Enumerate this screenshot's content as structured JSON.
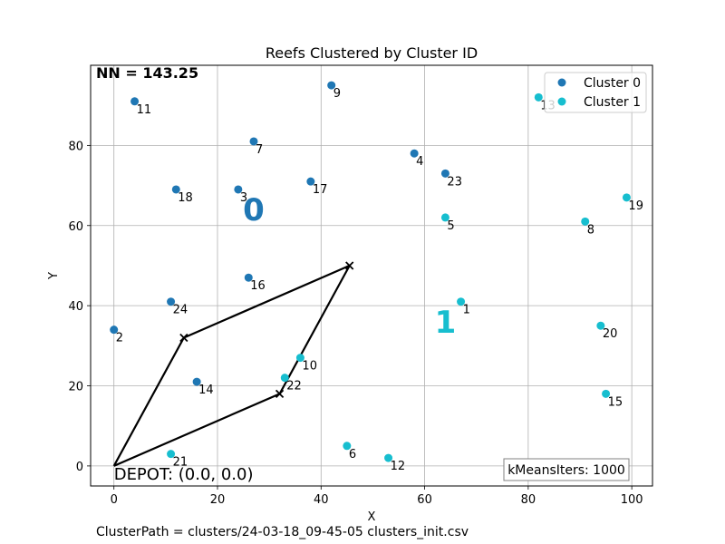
{
  "chart_data": {
    "type": "scatter",
    "title": "Reefs Clustered by Cluster ID",
    "xlabel": "X",
    "ylabel": "Y",
    "xlim": [
      -4.5,
      104
    ],
    "ylim": [
      -5,
      100
    ],
    "xticks": [
      0,
      20,
      40,
      60,
      80,
      100
    ],
    "yticks": [
      0,
      20,
      40,
      60,
      80
    ],
    "grid": true,
    "legend_position": "top-right",
    "series": [
      {
        "name": "Cluster 0",
        "color": "#1f77b4",
        "points": [
          {
            "id": "2",
            "x": 0,
            "y": 34
          },
          {
            "id": "3",
            "x": 24,
            "y": 69
          },
          {
            "id": "4",
            "x": 58,
            "y": 78
          },
          {
            "id": "7",
            "x": 27,
            "y": 81
          },
          {
            "id": "9",
            "x": 42,
            "y": 95
          },
          {
            "id": "11",
            "x": 4,
            "y": 91
          },
          {
            "id": "14",
            "x": 16,
            "y": 21
          },
          {
            "id": "16",
            "x": 26,
            "y": 47
          },
          {
            "id": "17",
            "x": 38,
            "y": 71
          },
          {
            "id": "18",
            "x": 12,
            "y": 69
          },
          {
            "id": "23",
            "x": 64,
            "y": 73
          },
          {
            "id": "24",
            "x": 11,
            "y": 41
          }
        ]
      },
      {
        "name": "Cluster 1",
        "color": "#17becf",
        "points": [
          {
            "id": "1",
            "x": 67,
            "y": 41
          },
          {
            "id": "5",
            "x": 64,
            "y": 62
          },
          {
            "id": "6",
            "x": 45,
            "y": 5
          },
          {
            "id": "8",
            "x": 91,
            "y": 61
          },
          {
            "id": "10",
            "x": 36,
            "y": 27
          },
          {
            "id": "12",
            "x": 53,
            "y": 2
          },
          {
            "id": "13",
            "x": 82,
            "y": 92
          },
          {
            "id": "15",
            "x": 95,
            "y": 18
          },
          {
            "id": "19",
            "x": 99,
            "y": 67
          },
          {
            "id": "20",
            "x": 94,
            "y": 35
          },
          {
            "id": "21",
            "x": 11,
            "y": 3
          },
          {
            "id": "22",
            "x": 33,
            "y": 22
          }
        ]
      }
    ],
    "cluster_labels": [
      {
        "text": "0",
        "x": 27,
        "y": 64,
        "color": "#1f77b4"
      },
      {
        "text": "1",
        "x": 64,
        "y": 36,
        "color": "#17becf"
      }
    ],
    "path": [
      {
        "x": 0,
        "y": 0
      },
      {
        "x": 13.5,
        "y": 32
      },
      {
        "x": 45.5,
        "y": 50
      },
      {
        "x": 32,
        "y": 18
      },
      {
        "x": 0,
        "y": 0
      }
    ],
    "path_color": "#000000",
    "annotations": {
      "nn": "NN = 143.25",
      "depot": "DEPOT: (0.0, 0.0)",
      "kmeans": "kMeansIters: 1000",
      "cluster_path": "ClusterPath = clusters/24-03-18_09-45-05 clusters_init.csv"
    },
    "depot": {
      "x": 0,
      "y": 0
    }
  }
}
